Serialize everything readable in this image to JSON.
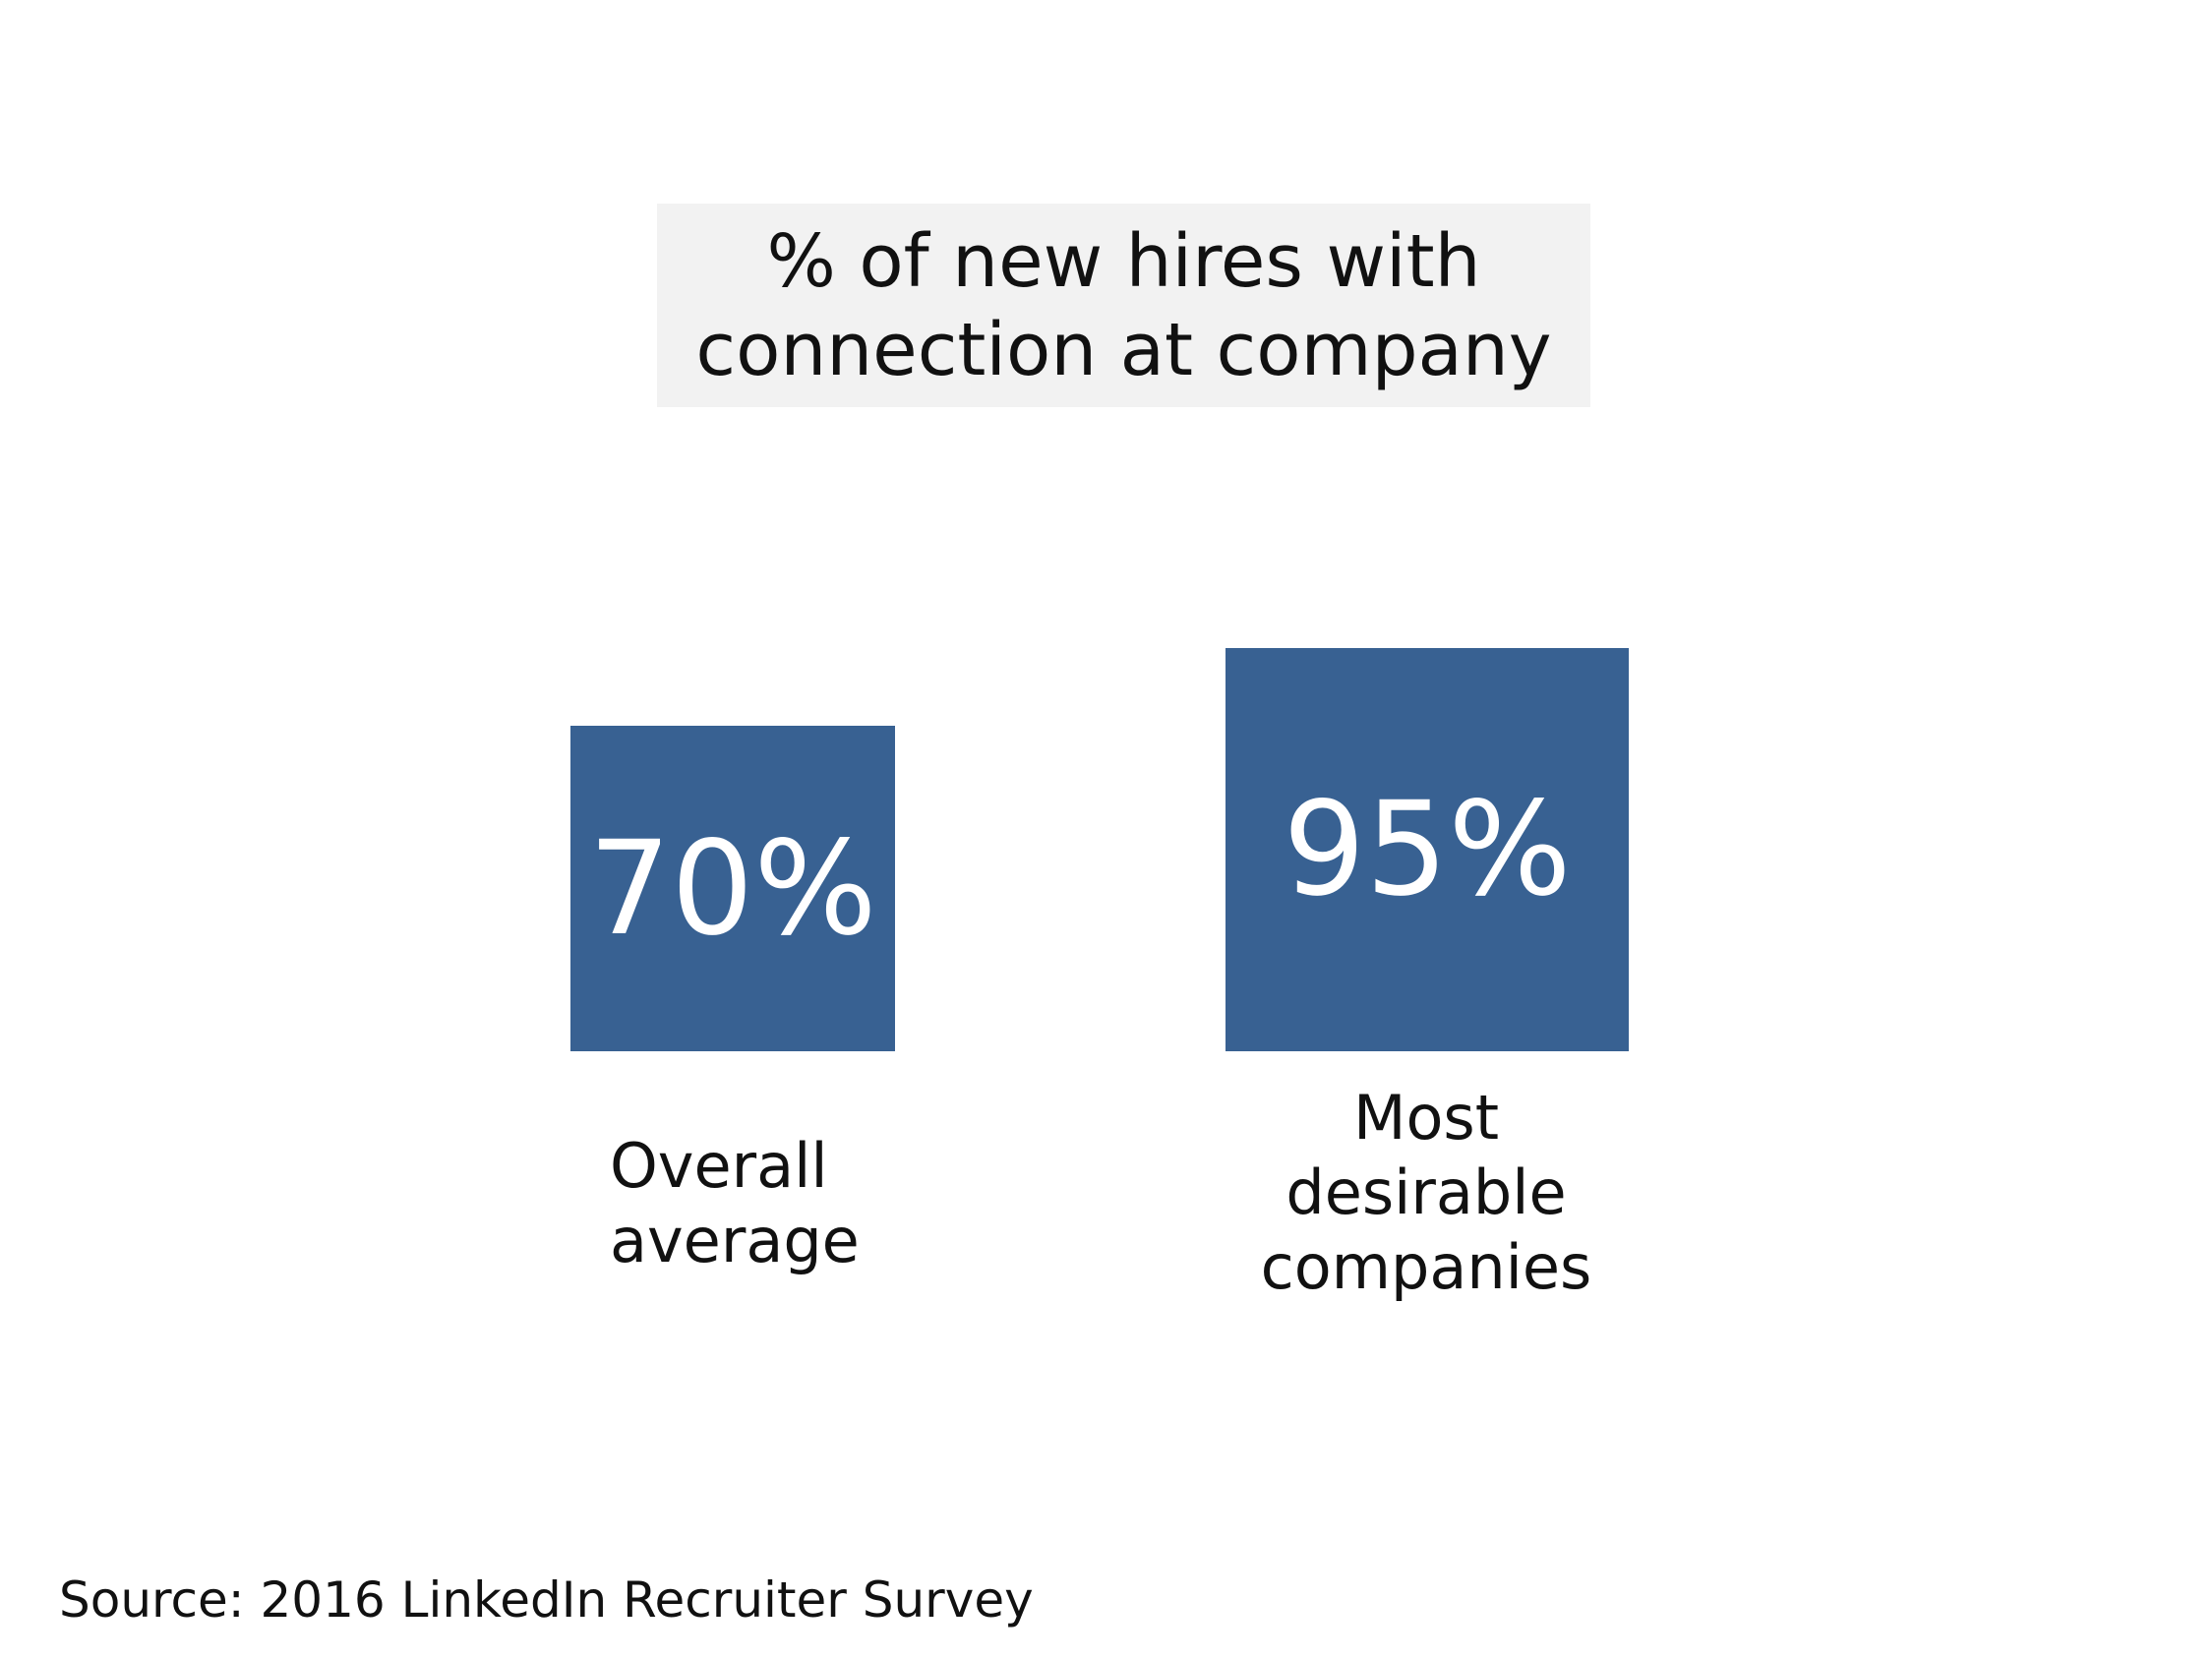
{
  "chart_data": {
    "type": "bar",
    "title": "% of new hires with connection at company",
    "title_lines": [
      "% of new hires with",
      "connection at company"
    ],
    "categories": [
      "Overall average",
      "Most desirable companies"
    ],
    "category_lines": [
      [
        "Overall",
        "average"
      ],
      [
        "Most",
        "desirable",
        "companies"
      ]
    ],
    "values": [
      70,
      95
    ],
    "value_labels": [
      "70%",
      "95%"
    ],
    "unit": "%",
    "mark": "square-area",
    "bar_color": "#386192",
    "title_background": "#f2f2f2",
    "legend": "none",
    "grid": false
  },
  "source": "Source:  2016 LinkedIn Recruiter Survey"
}
